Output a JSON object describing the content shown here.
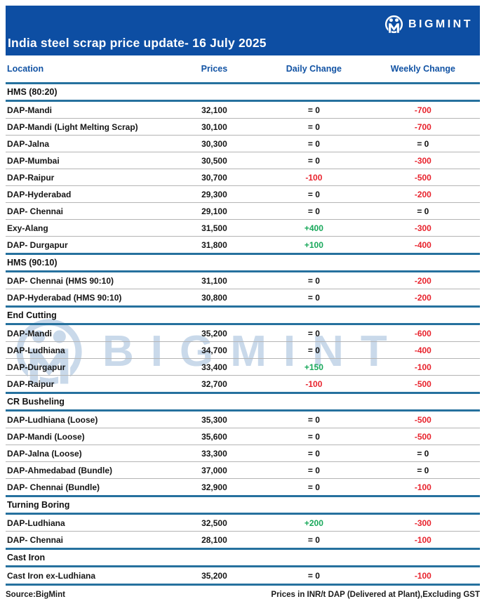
{
  "header": {
    "title": "India steel scrap price update- 16 July 2025",
    "brand": "BIGMINT"
  },
  "columns": [
    "Location",
    "Prices",
    "Daily Change",
    "Weekly Change"
  ],
  "sections": [
    {
      "name": "HMS (80:20)",
      "rows": [
        {
          "location": "DAP-Mandi",
          "price": "32,100",
          "daily": "= 0",
          "weekly": "-700"
        },
        {
          "location": "DAP-Mandi (Light Melting Scrap)",
          "price": "30,100",
          "daily": "= 0",
          "weekly": "-700"
        },
        {
          "location": "DAP-Jalna",
          "price": "30,300",
          "daily": "= 0",
          "weekly": "= 0"
        },
        {
          "location": "DAP-Mumbai",
          "price": "30,500",
          "daily": "= 0",
          "weekly": "-300"
        },
        {
          "location": "DAP-Raipur",
          "price": "30,700",
          "daily": "-100",
          "weekly": "-500"
        },
        {
          "location": "DAP-Hyderabad",
          "price": "29,300",
          "daily": "= 0",
          "weekly": "-200"
        },
        {
          "location": "DAP- Chennai",
          "price": "29,100",
          "daily": "= 0",
          "weekly": "= 0"
        },
        {
          "location": "Exy-Alang",
          "price": "31,500",
          "daily": "+400",
          "weekly": "-300"
        },
        {
          "location": "DAP- Durgapur",
          "price": "31,800",
          "daily": "+100",
          "weekly": "-400"
        }
      ]
    },
    {
      "name": "HMS (90:10)",
      "rows": [
        {
          "location": "DAP- Chennai (HMS 90:10)",
          "price": "31,100",
          "daily": "= 0",
          "weekly": "-200"
        },
        {
          "location": "DAP-Hyderabad (HMS 90:10)",
          "price": "30,800",
          "daily": "= 0",
          "weekly": "-200"
        }
      ]
    },
    {
      "name": "End Cutting",
      "rows": [
        {
          "location": "DAP-Mandi",
          "price": "35,200",
          "daily": "= 0",
          "weekly": "-600"
        },
        {
          "location": "DAP-Ludhiana",
          "price": "34,700",
          "daily": "= 0",
          "weekly": "-400"
        },
        {
          "location": "DAP-Durgapur",
          "price": "33,400",
          "daily": "+150",
          "weekly": "-100"
        },
        {
          "location": "DAP-Raipur",
          "price": "32,700",
          "daily": "-100",
          "weekly": "-500"
        }
      ]
    },
    {
      "name": "CR Busheling",
      "rows": [
        {
          "location": "DAP-Ludhiana (Loose)",
          "price": "35,300",
          "daily": "= 0",
          "weekly": "-500"
        },
        {
          "location": "DAP-Mandi (Loose)",
          "price": "35,600",
          "daily": "= 0",
          "weekly": "-500"
        },
        {
          "location": "DAP-Jalna (Loose)",
          "price": "33,300",
          "daily": "= 0",
          "weekly": "= 0"
        },
        {
          "location": "DAP-Ahmedabad (Bundle)",
          "price": "37,000",
          "daily": "= 0",
          "weekly": "= 0"
        },
        {
          "location": "DAP- Chennai (Bundle)",
          "price": "32,900",
          "daily": "= 0",
          "weekly": "-100"
        }
      ]
    },
    {
      "name": "Turning Boring",
      "rows": [
        {
          "location": "DAP-Ludhiana",
          "price": "32,500",
          "daily": "+200",
          "weekly": "-300"
        },
        {
          "location": "DAP- Chennai",
          "price": "28,100",
          "daily": "= 0",
          "weekly": "-100"
        }
      ]
    },
    {
      "name": "Cast Iron",
      "rows": [
        {
          "location": "Cast Iron ex-Ludhiana",
          "price": "35,200",
          "daily": "= 0",
          "weekly": "-100"
        }
      ]
    }
  ],
  "footer": {
    "source": "Source:BigMint",
    "note": "Prices in INR/t DAP (Delivered at Plant),Excluding GST"
  },
  "watermark": {
    "text": "BIGMINT"
  },
  "colors": {
    "header-bg": "#0d4ea3",
    "colhead-text": "#1253a4",
    "accent-line": "#26719e",
    "negative": "#e8232d",
    "positive": "#18a85a",
    "watermark": "#bcd0e6"
  }
}
